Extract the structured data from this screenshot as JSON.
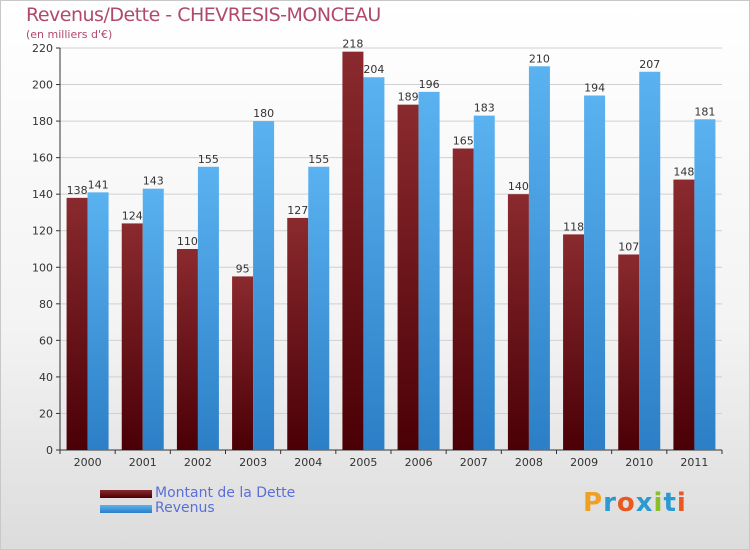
{
  "title": "Revenus/Dette - CHEVRESIS-MONCEAU",
  "subtitle": "(en milliers d'€)",
  "colors": {
    "debt": "#7a1f24",
    "revenue": "#4aa3e6",
    "grid": "#d0d0d0",
    "axis": "#333333"
  },
  "chart_data": {
    "type": "bar",
    "categories": [
      "2000",
      "2001",
      "2002",
      "2003",
      "2004",
      "2005",
      "2006",
      "2007",
      "2008",
      "2009",
      "2010",
      "2011"
    ],
    "series": [
      {
        "name": "Montant de la Dette",
        "values": [
          138,
          124,
          110,
          95,
          127,
          218,
          189,
          165,
          140,
          118,
          107,
          148
        ]
      },
      {
        "name": "Revenus",
        "values": [
          141,
          143,
          155,
          180,
          155,
          204,
          196,
          183,
          210,
          194,
          207,
          181
        ]
      }
    ],
    "title": "Revenus/Dette - CHEVRESIS-MONCEAU",
    "subtitle": "(en milliers d'€)",
    "ylim": [
      0,
      220
    ],
    "yticks": [
      0,
      20,
      40,
      60,
      80,
      100,
      120,
      140,
      160,
      180,
      200,
      220
    ],
    "grid": true,
    "legend": "bottom-left"
  },
  "legend": [
    {
      "label": "Montant de la Dette"
    },
    {
      "label": "Revenus"
    }
  ],
  "logo": {
    "text": "Proxiti",
    "letters": [
      "P",
      "r",
      "o",
      "x",
      "i",
      "t",
      "i"
    ],
    "colors": [
      "#f0a020",
      "#2a9ad0",
      "#e85820",
      "#2a9ad0",
      "#8abf2a",
      "#2a9ad0",
      "#e85820"
    ]
  }
}
